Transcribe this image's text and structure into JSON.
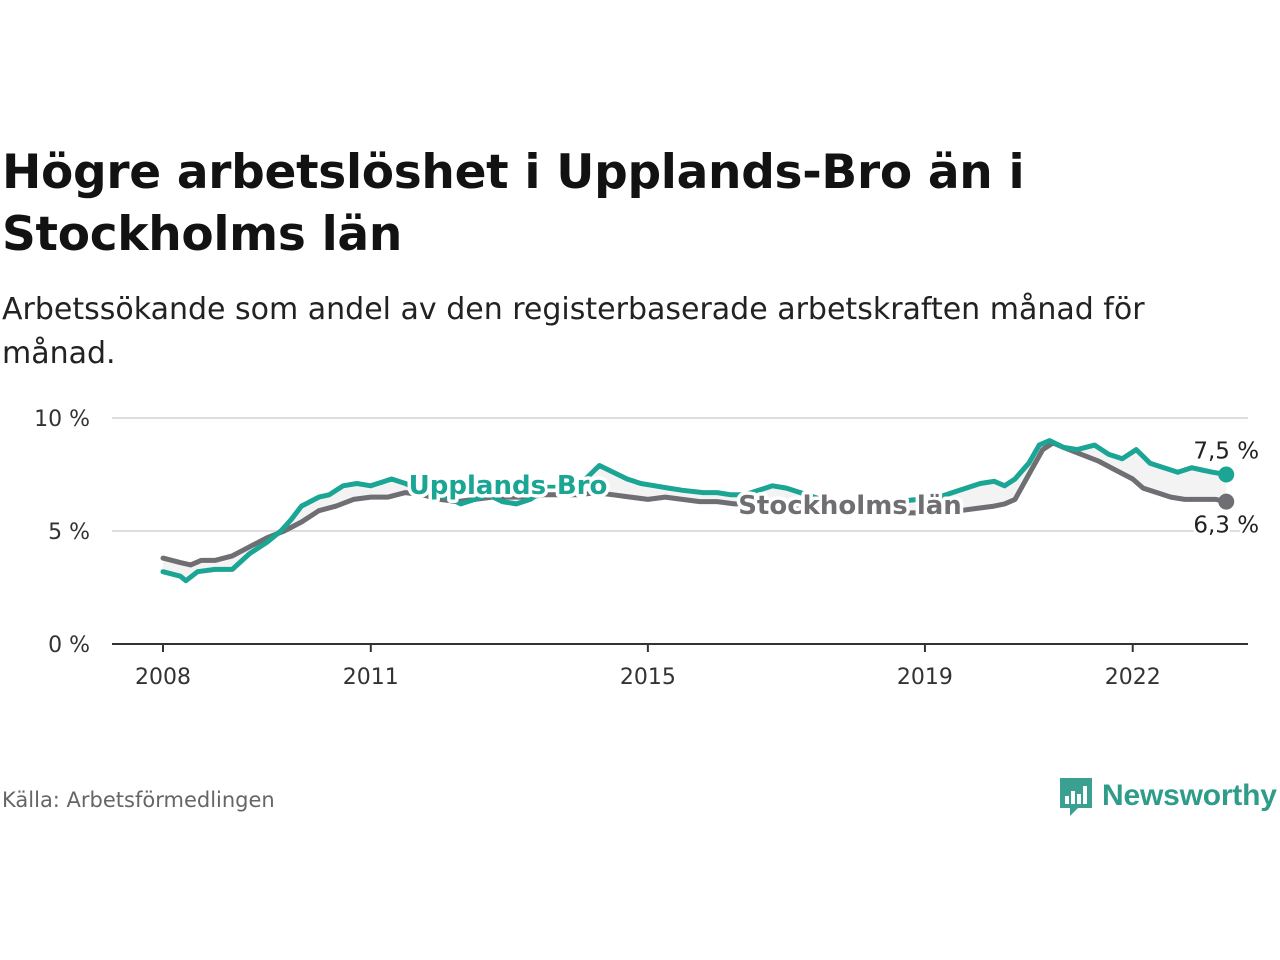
{
  "title": "Högre arbetslöshet i Upplands-Bro än i Stockholms län",
  "subtitle": "Arbetssökande som andel av den registerbaserade arbetskraften månad för månad.",
  "source": "Källa: Arbetsförmedlingen",
  "brand": {
    "name": "Newsworthy",
    "icon": "newsworthy-logo-icon"
  },
  "colors": {
    "upplands_bro": "#1aa595",
    "stockholms_lan": "#6e6e73",
    "grid": "#dddddd",
    "axis": "#333333",
    "fill": "#f2f2f2"
  },
  "chart_data": {
    "type": "line",
    "title": "Högre arbetslöshet i Upplands-Bro än i Stockholms län",
    "xlabel": "",
    "ylabel": "",
    "xlim": [
      2008,
      2023
    ],
    "ylim": [
      0,
      10
    ],
    "x_ticks": [
      2008,
      2011,
      2015,
      2019,
      2022
    ],
    "x_tick_labels": [
      "2008",
      "2011",
      "2015",
      "2019",
      "2022"
    ],
    "y_ticks": [
      0,
      5,
      10
    ],
    "y_tick_labels": [
      "0 %",
      "5 %",
      "10 %"
    ],
    "grid": true,
    "series": [
      {
        "name": "Upplands-Bro",
        "label": "Upplands-Bro",
        "end_label": "7,5 %",
        "values": [
          [
            2008.0,
            3.2
          ],
          [
            2008.25,
            3.0
          ],
          [
            2008.33,
            2.8
          ],
          [
            2008.5,
            3.2
          ],
          [
            2008.75,
            3.3
          ],
          [
            2009.0,
            3.3
          ],
          [
            2009.25,
            4.0
          ],
          [
            2009.5,
            4.5
          ],
          [
            2009.7,
            5.0
          ],
          [
            2009.85,
            5.5
          ],
          [
            2010.0,
            6.1
          ],
          [
            2010.25,
            6.5
          ],
          [
            2010.4,
            6.6
          ],
          [
            2010.6,
            7.0
          ],
          [
            2010.8,
            7.1
          ],
          [
            2011.0,
            7.0
          ],
          [
            2011.3,
            7.3
          ],
          [
            2011.5,
            7.1
          ],
          [
            2011.7,
            6.8
          ],
          [
            2011.9,
            6.6
          ],
          [
            2012.1,
            6.5
          ],
          [
            2012.3,
            6.2
          ],
          [
            2012.5,
            6.4
          ],
          [
            2012.7,
            6.6
          ],
          [
            2012.9,
            6.3
          ],
          [
            2013.1,
            6.2
          ],
          [
            2013.3,
            6.4
          ],
          [
            2013.5,
            6.8
          ],
          [
            2013.7,
            7.0
          ],
          [
            2013.9,
            7.2
          ],
          [
            2014.1,
            7.3
          ],
          [
            2014.3,
            7.9
          ],
          [
            2014.5,
            7.6
          ],
          [
            2014.7,
            7.3
          ],
          [
            2014.9,
            7.1
          ],
          [
            2015.1,
            7.0
          ],
          [
            2015.3,
            6.9
          ],
          [
            2015.5,
            6.8
          ],
          [
            2015.8,
            6.7
          ],
          [
            2016.0,
            6.7
          ],
          [
            2016.2,
            6.6
          ],
          [
            2016.4,
            6.6
          ],
          [
            2016.6,
            6.8
          ],
          [
            2016.8,
            7.0
          ],
          [
            2017.0,
            6.9
          ],
          [
            2017.2,
            6.7
          ],
          [
            2017.4,
            6.5
          ],
          [
            2017.6,
            6.3
          ],
          [
            2017.8,
            6.1
          ],
          [
            2018.0,
            6.0
          ],
          [
            2018.3,
            6.1
          ],
          [
            2018.6,
            6.3
          ],
          [
            2018.9,
            6.4
          ],
          [
            2019.2,
            6.5
          ],
          [
            2019.5,
            6.8
          ],
          [
            2019.8,
            7.1
          ],
          [
            2020.0,
            7.2
          ],
          [
            2020.15,
            7.0
          ],
          [
            2020.3,
            7.3
          ],
          [
            2020.5,
            8.0
          ],
          [
            2020.65,
            8.8
          ],
          [
            2020.8,
            9.0
          ],
          [
            2021.0,
            8.7
          ],
          [
            2021.2,
            8.6
          ],
          [
            2021.45,
            8.8
          ],
          [
            2021.65,
            8.4
          ],
          [
            2021.85,
            8.2
          ],
          [
            2022.05,
            8.6
          ],
          [
            2022.25,
            8.0
          ],
          [
            2022.45,
            7.8
          ],
          [
            2022.65,
            7.6
          ],
          [
            2022.85,
            7.8
          ],
          [
            2023.0,
            7.7
          ],
          [
            2023.15,
            7.6
          ],
          [
            2023.35,
            7.5
          ]
        ]
      },
      {
        "name": "Stockholms län",
        "label": "Stockholms län",
        "end_label": "6,3 %",
        "values": [
          [
            2008.0,
            3.8
          ],
          [
            2008.25,
            3.6
          ],
          [
            2008.4,
            3.5
          ],
          [
            2008.55,
            3.7
          ],
          [
            2008.75,
            3.7
          ],
          [
            2009.0,
            3.9
          ],
          [
            2009.25,
            4.3
          ],
          [
            2009.5,
            4.7
          ],
          [
            2009.75,
            5.0
          ],
          [
            2010.0,
            5.4
          ],
          [
            2010.25,
            5.9
          ],
          [
            2010.5,
            6.1
          ],
          [
            2010.75,
            6.4
          ],
          [
            2011.0,
            6.5
          ],
          [
            2011.25,
            6.5
          ],
          [
            2011.5,
            6.7
          ],
          [
            2011.75,
            6.6
          ],
          [
            2012.0,
            6.4
          ],
          [
            2012.25,
            6.3
          ],
          [
            2012.5,
            6.4
          ],
          [
            2012.75,
            6.5
          ],
          [
            2013.0,
            6.5
          ],
          [
            2013.25,
            6.5
          ],
          [
            2013.5,
            6.6
          ],
          [
            2013.75,
            6.6
          ],
          [
            2014.0,
            6.6
          ],
          [
            2014.25,
            6.7
          ],
          [
            2014.5,
            6.6
          ],
          [
            2014.75,
            6.5
          ],
          [
            2015.0,
            6.4
          ],
          [
            2015.25,
            6.5
          ],
          [
            2015.5,
            6.4
          ],
          [
            2015.75,
            6.3
          ],
          [
            2016.0,
            6.3
          ],
          [
            2016.25,
            6.2
          ],
          [
            2016.5,
            6.2
          ],
          [
            2016.75,
            6.3
          ],
          [
            2017.0,
            6.2
          ],
          [
            2017.25,
            6.1
          ],
          [
            2017.5,
            6.0
          ],
          [
            2017.75,
            5.9
          ],
          [
            2018.0,
            5.8
          ],
          [
            2018.25,
            5.8
          ],
          [
            2018.5,
            5.8
          ],
          [
            2018.75,
            5.8
          ],
          [
            2019.0,
            5.8
          ],
          [
            2019.25,
            5.9
          ],
          [
            2019.5,
            5.9
          ],
          [
            2019.75,
            6.0
          ],
          [
            2020.0,
            6.1
          ],
          [
            2020.15,
            6.2
          ],
          [
            2020.3,
            6.4
          ],
          [
            2020.5,
            7.5
          ],
          [
            2020.7,
            8.6
          ],
          [
            2020.85,
            8.9
          ],
          [
            2021.0,
            8.7
          ],
          [
            2021.25,
            8.4
          ],
          [
            2021.5,
            8.1
          ],
          [
            2021.75,
            7.7
          ],
          [
            2022.0,
            7.3
          ],
          [
            2022.15,
            6.9
          ],
          [
            2022.35,
            6.7
          ],
          [
            2022.55,
            6.5
          ],
          [
            2022.75,
            6.4
          ],
          [
            2023.0,
            6.4
          ],
          [
            2023.2,
            6.4
          ],
          [
            2023.35,
            6.3
          ]
        ]
      }
    ]
  }
}
